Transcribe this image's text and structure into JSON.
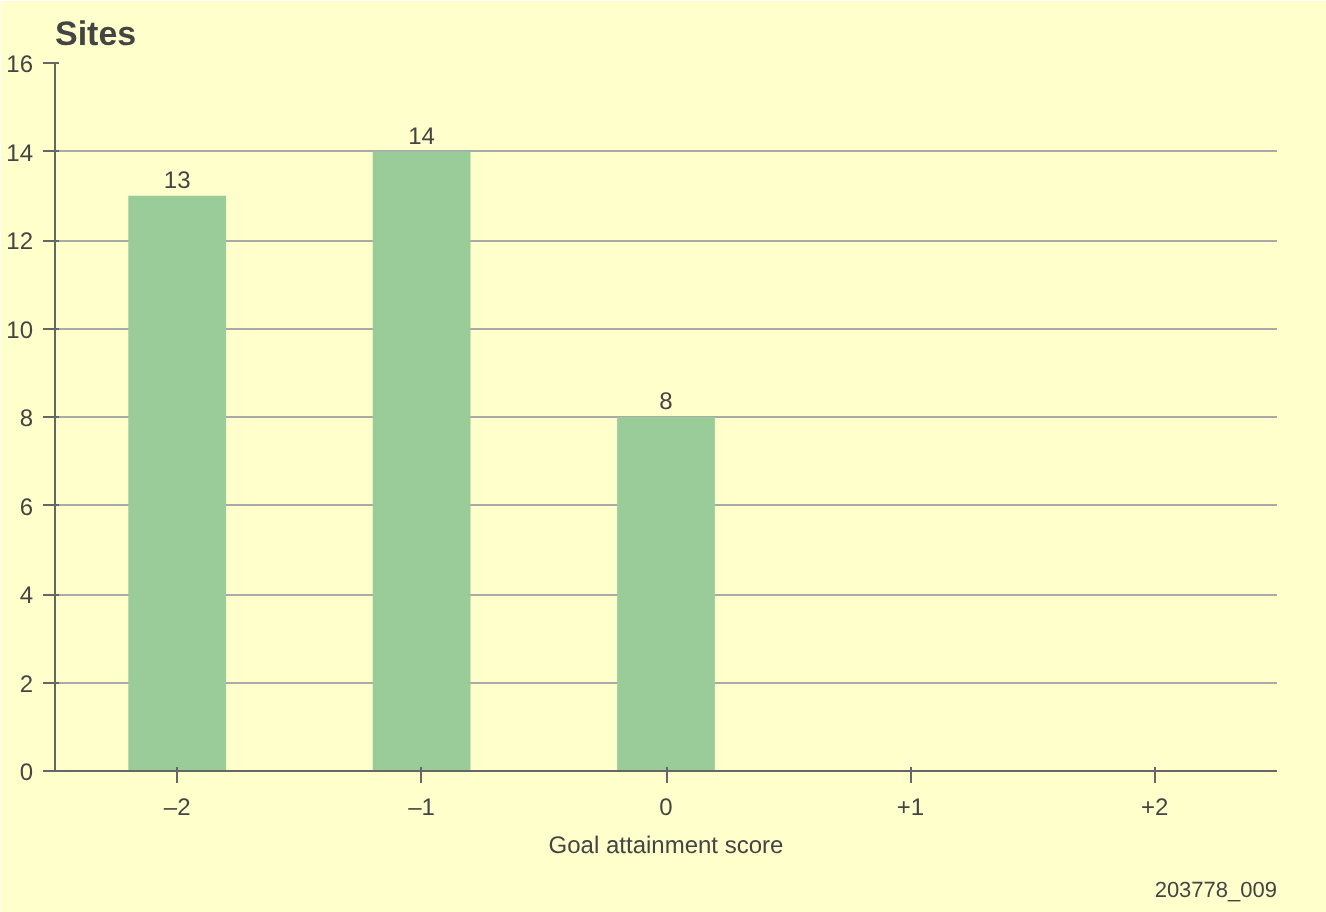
{
  "chart_data": {
    "type": "bar",
    "title": "Sites",
    "xlabel": "Goal attainment score",
    "categories": [
      "–2",
      "–1",
      "0",
      "+1",
      "+2"
    ],
    "values": [
      13,
      14,
      8,
      0,
      0
    ],
    "value_labels": [
      "13",
      "14",
      "8",
      null,
      null
    ],
    "color": "#99cc99",
    "ylim": [
      0,
      16
    ],
    "yticks": [
      0,
      2,
      4,
      6,
      8,
      10,
      12,
      14,
      16
    ],
    "grid": "y",
    "annotations": [
      "203778_009"
    ]
  }
}
